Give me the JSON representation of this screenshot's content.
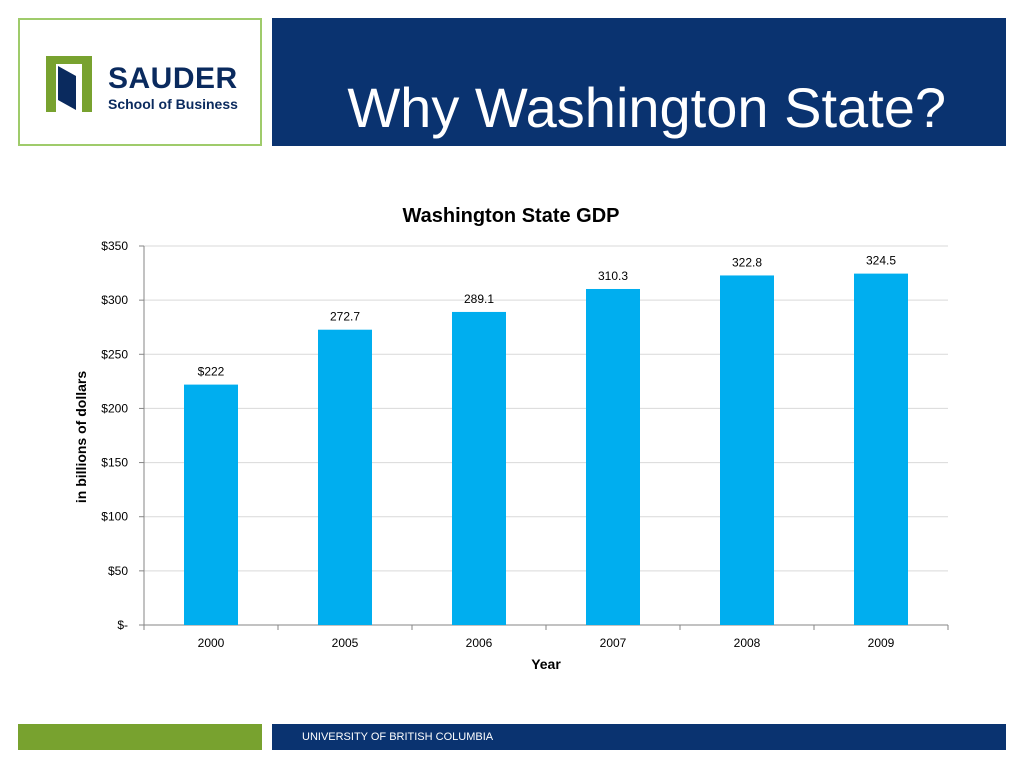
{
  "header": {
    "logo_name": "SAUDER",
    "logo_sub": "School of Business",
    "title": "Why Washington State?"
  },
  "footer": {
    "text": "UNIVERSITY OF BRITISH COLUMBIA"
  },
  "colors": {
    "navy": "#0a3370",
    "green": "#78a22f",
    "logo_border": "#9fcb6b",
    "bar": "#00aeef"
  },
  "chart_data": {
    "type": "bar",
    "title": "Washington State GDP",
    "xlabel": "Year",
    "ylabel": "in billions of dollars",
    "categories": [
      "2000",
      "2005",
      "2006",
      "2007",
      "2008",
      "2009"
    ],
    "values": [
      222,
      272.7,
      289.1,
      310.3,
      322.8,
      324.5
    ],
    "data_labels": [
      "$222",
      "272.7",
      "289.1",
      "310.3",
      "322.8",
      "324.5"
    ],
    "ylim": [
      0,
      350
    ],
    "y_ticks": [
      0,
      50,
      100,
      150,
      200,
      250,
      300,
      350
    ],
    "y_tick_labels": [
      "$-",
      "$50",
      "$100",
      "$150",
      "$200",
      "$250",
      "$300",
      "$350"
    ],
    "grid": true,
    "legend": "none"
  }
}
